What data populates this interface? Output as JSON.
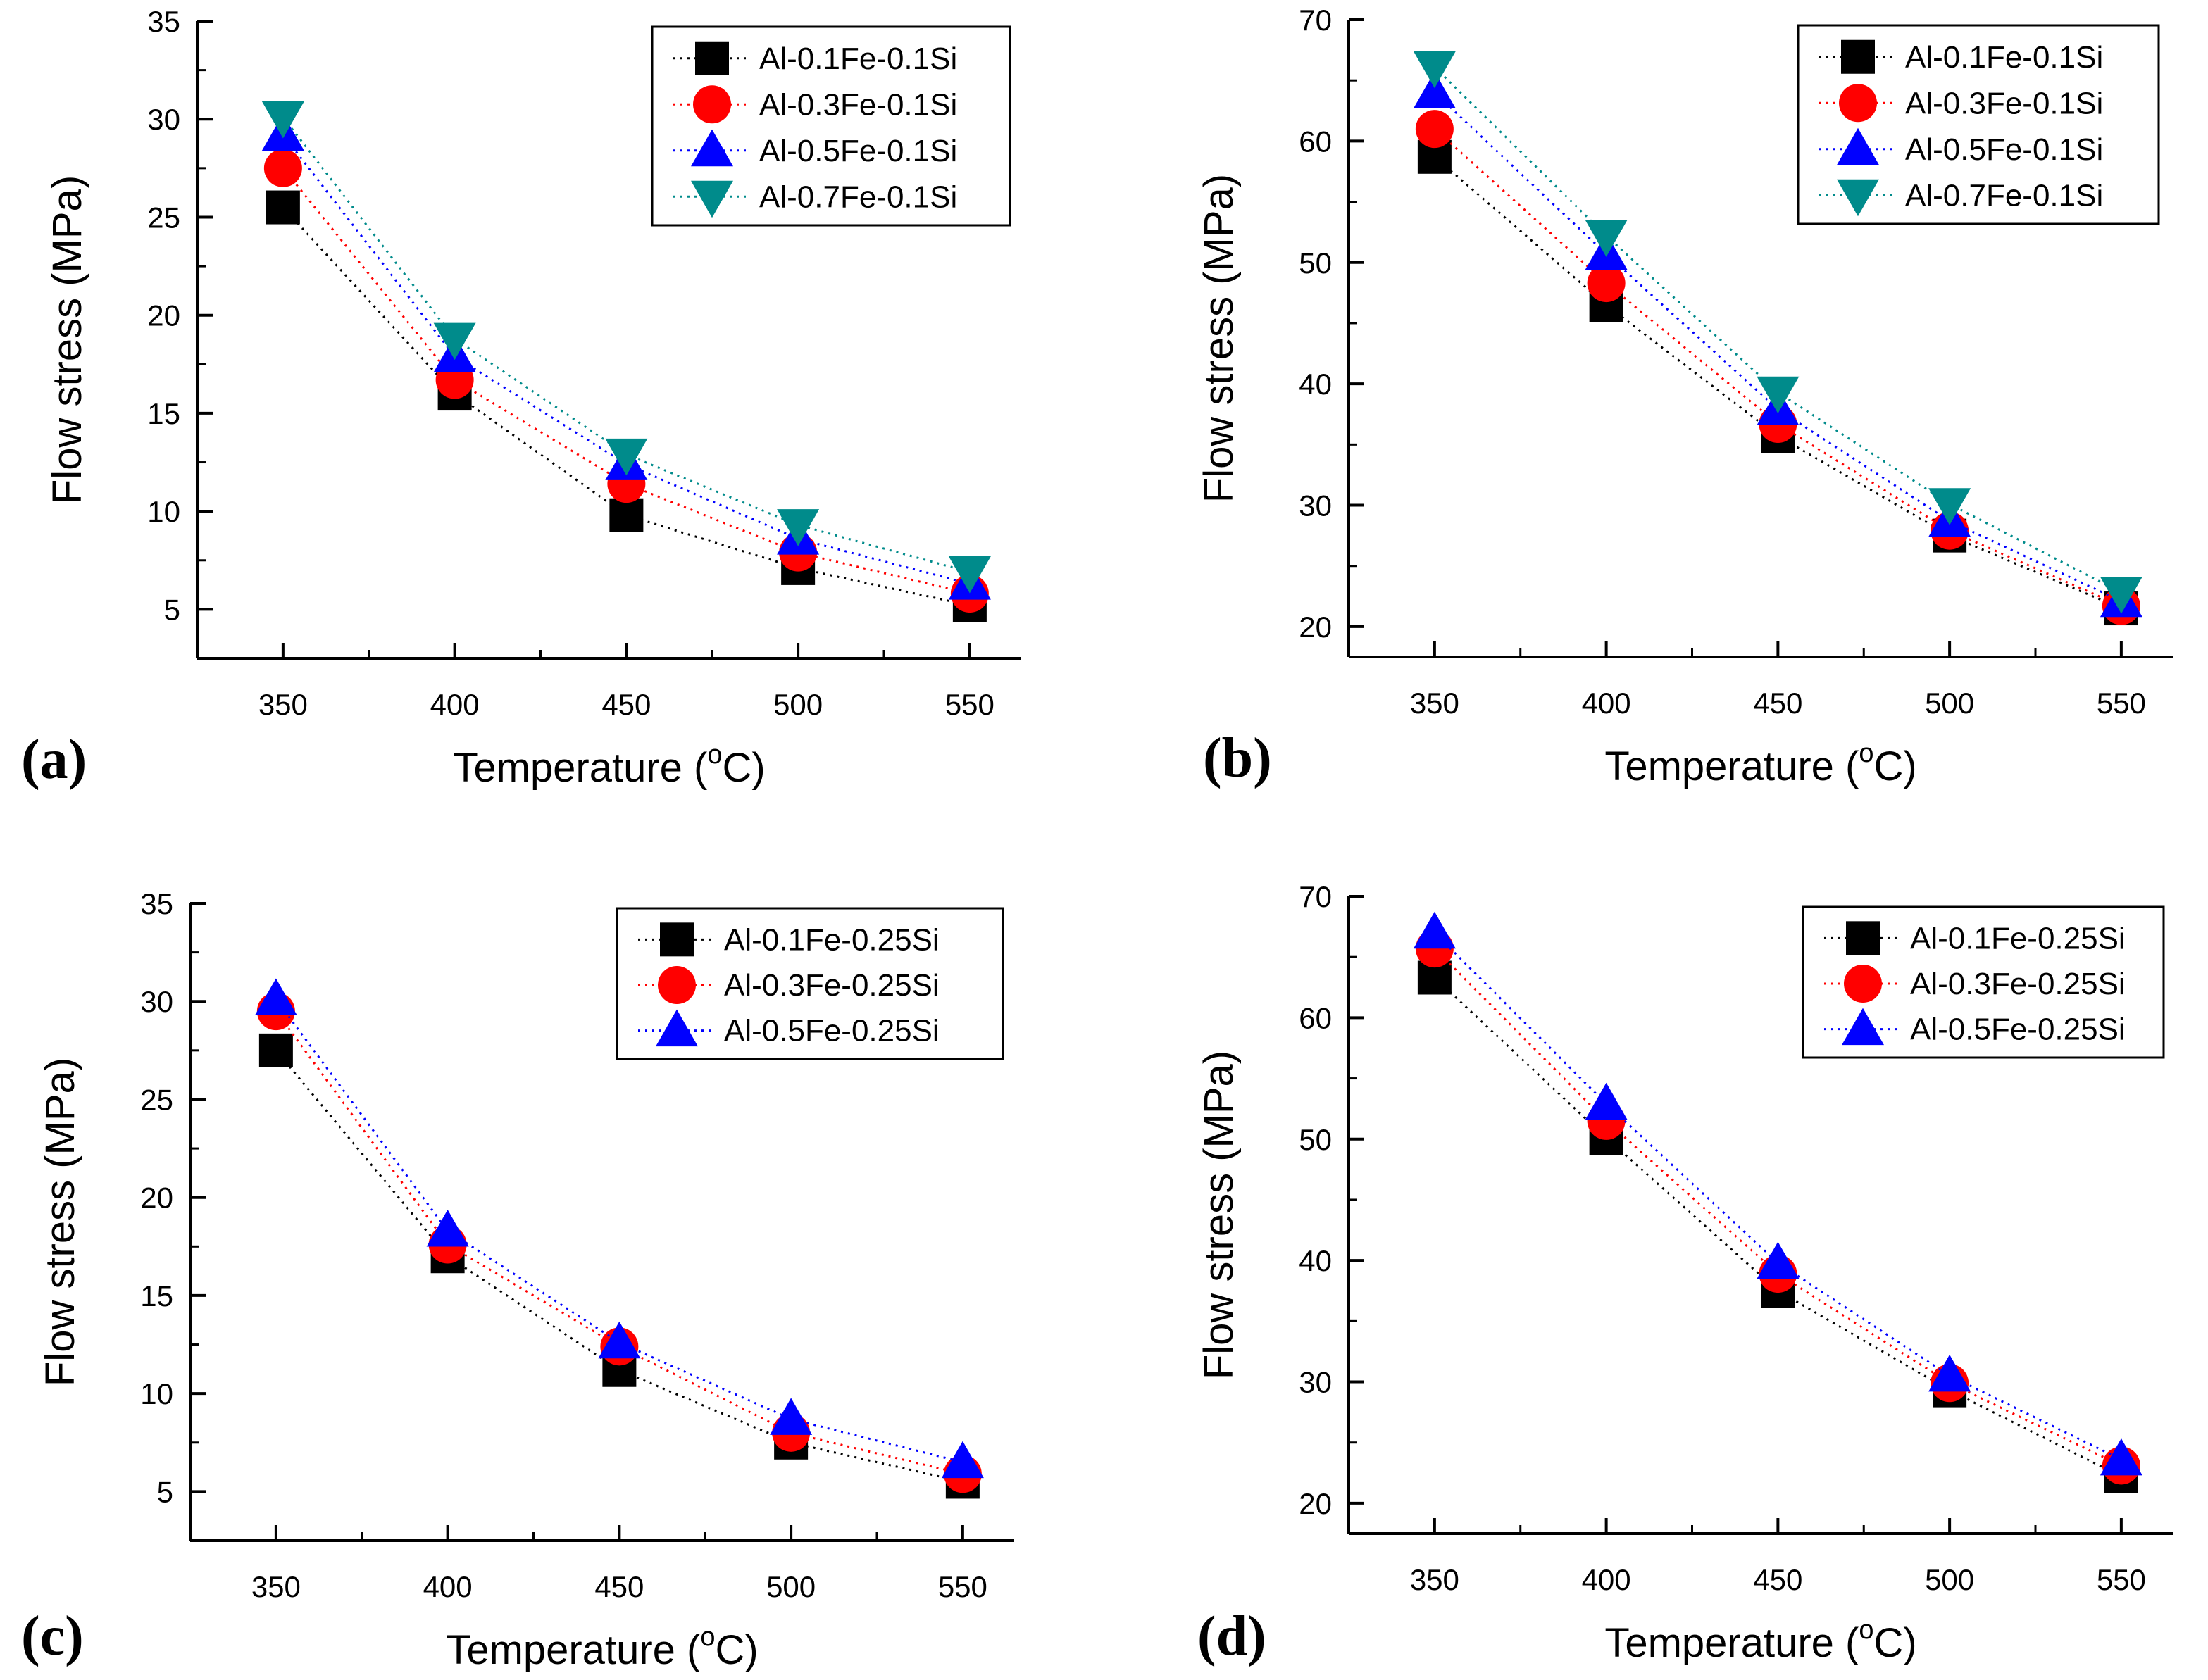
{
  "colors": {
    "black": "#000000",
    "red": "#ff0000",
    "blue": "#0000ff",
    "teal": "#008b8b"
  },
  "chart_data": [
    {
      "type": "line",
      "panel_label": "(a)",
      "xlabel": "Temperature (",
      "xlabel_unit": "o",
      "xlabel_end": "C)",
      "ylabel": "Flow stress (MPa)",
      "x": [
        350,
        400,
        450,
        500,
        550
      ],
      "xticks": [
        "350",
        "400",
        "450",
        "500",
        "550"
      ],
      "xlim": [
        325,
        565
      ],
      "ylim": [
        2.5,
        35
      ],
      "yticks": [
        "5",
        "10",
        "15",
        "20",
        "25",
        "30",
        "35"
      ],
      "series": [
        {
          "name": "Al-0.1Fe-0.1Si",
          "marker": "square",
          "color": "#000000",
          "values": [
            25.5,
            16.0,
            9.8,
            7.1,
            5.2
          ]
        },
        {
          "name": "Al-0.3Fe-0.1Si",
          "marker": "circle",
          "color": "#ff0000",
          "values": [
            27.5,
            16.7,
            11.4,
            7.9,
            5.8
          ]
        },
        {
          "name": "Al-0.5Fe-0.1Si",
          "marker": "triangle-up",
          "color": "#0000ff",
          "values": [
            29.2,
            17.9,
            12.4,
            8.6,
            6.3
          ]
        },
        {
          "name": "Al-0.7Fe-0.1Si",
          "marker": "triangle-down",
          "color": "#008b8b",
          "values": [
            30.1,
            18.8,
            12.9,
            9.3,
            6.9
          ]
        }
      ]
    },
    {
      "type": "line",
      "panel_label": "(b)",
      "xlabel": "Temperature (",
      "xlabel_unit": "o",
      "xlabel_end": "C)",
      "ylabel": "Flow stress (MPa)",
      "x": [
        350,
        400,
        450,
        500,
        550
      ],
      "xticks": [
        "350",
        "400",
        "450",
        "500",
        "550"
      ],
      "xlim": [
        325,
        565
      ],
      "ylim": [
        17.5,
        70
      ],
      "yticks": [
        "20",
        "30",
        "40",
        "50",
        "60",
        "70"
      ],
      "series": [
        {
          "name": "Al-0.1Fe-0.1Si",
          "marker": "square",
          "color": "#000000",
          "values": [
            58.7,
            46.5,
            35.7,
            27.5,
            21.5
          ]
        },
        {
          "name": "Al-0.3Fe-0.1Si",
          "marker": "circle",
          "color": "#ff0000",
          "values": [
            61.0,
            48.3,
            36.7,
            27.9,
            21.7
          ]
        },
        {
          "name": "Al-0.5Fe-0.1Si",
          "marker": "triangle-up",
          "color": "#0000ff",
          "values": [
            64.0,
            50.7,
            37.9,
            28.7,
            22.1
          ]
        },
        {
          "name": "Al-0.7Fe-0.1Si",
          "marker": "triangle-down",
          "color": "#008b8b",
          "values": [
            66.1,
            52.2,
            39.3,
            30.1,
            22.8
          ]
        }
      ]
    },
    {
      "type": "line",
      "panel_label": "(c)",
      "xlabel": "Temperature (",
      "xlabel_unit": "o",
      "xlabel_end": "C)",
      "ylabel": "Flow stress (MPa)",
      "x": [
        350,
        400,
        450,
        500,
        550
      ],
      "xticks": [
        "350",
        "400",
        "450",
        "500",
        "550"
      ],
      "xlim": [
        325,
        565
      ],
      "ylim": [
        2.5,
        35
      ],
      "yticks": [
        "5",
        "10",
        "15",
        "20",
        "25",
        "30",
        "35"
      ],
      "series": [
        {
          "name": "Al-0.1Fe-0.25Si",
          "marker": "square",
          "color": "#000000",
          "values": [
            27.5,
            17.0,
            11.2,
            7.5,
            5.5
          ]
        },
        {
          "name": "Al-0.3Fe-0.25Si",
          "marker": "circle",
          "color": "#ff0000",
          "values": [
            29.5,
            17.6,
            12.4,
            8.0,
            5.9
          ]
        },
        {
          "name": "Al-0.5Fe-0.25Si",
          "marker": "triangle-up",
          "color": "#0000ff",
          "values": [
            30.1,
            18.3,
            12.6,
            8.7,
            6.5
          ]
        }
      ]
    },
    {
      "type": "line",
      "panel_label": "(d)",
      "xlabel": "Temperature (",
      "xlabel_unit": "o",
      "xlabel_end": "C)",
      "ylabel": "Flow stress (MPa)",
      "x": [
        350,
        400,
        450,
        500,
        550
      ],
      "xticks": [
        "350",
        "400",
        "450",
        "500",
        "550"
      ],
      "xlim": [
        325,
        565
      ],
      "ylim": [
        17.5,
        70
      ],
      "yticks": [
        "20",
        "30",
        "40",
        "50",
        "60",
        "70"
      ],
      "series": [
        {
          "name": "Al-0.1Fe-0.25Si",
          "marker": "square",
          "color": "#000000",
          "values": [
            63.3,
            50.1,
            37.5,
            29.3,
            22.2
          ]
        },
        {
          "name": "Al-0.3Fe-0.25Si",
          "marker": "circle",
          "color": "#ff0000",
          "values": [
            65.7,
            51.5,
            38.9,
            29.9,
            23.1
          ]
        },
        {
          "name": "Al-0.5Fe-0.25Si",
          "marker": "triangle-up",
          "color": "#0000ff",
          "values": [
            67.0,
            52.9,
            39.8,
            30.5,
            23.6
          ]
        }
      ]
    }
  ]
}
